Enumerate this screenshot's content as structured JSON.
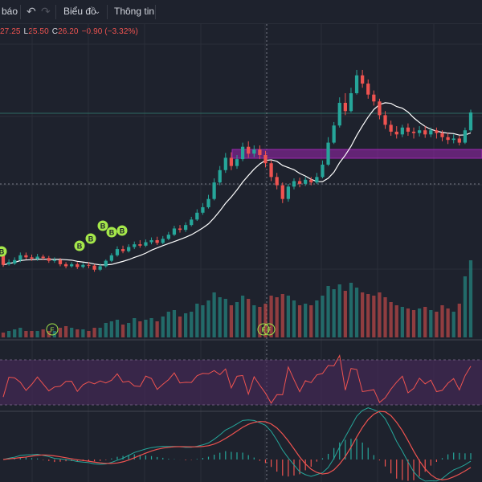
{
  "toolbar": {
    "alerts_label": "báo",
    "undo_icon": "undo-icon",
    "redo_icon": "redo-icon",
    "chart_type_label": "Biểu đồ",
    "chart_type_icon": "chevron-down-icon",
    "info_label": "Thông tin"
  },
  "legend": {
    "high_label": "",
    "high": "27.25",
    "low_label": "L",
    "low": "25.50",
    "close_label": "C",
    "close": "26.20",
    "change": "−0.90 (−3.32%)"
  },
  "colors": {
    "background": "#1e222d",
    "up": "#26a69a",
    "down": "#ef5350",
    "ma": "#ffffff",
    "highlight_zone": "#9c27b0",
    "signal_marker": "#a5e84a",
    "rsi_band": "#4a2a5c",
    "macd": "#26a69a",
    "macd_signal": "#ef5350"
  },
  "markers": {
    "buy_label": "B",
    "flag_label": "F"
  },
  "chart_data": {
    "type": "candlestick",
    "candles": [
      [
        2,
        0.2,
        0.6,
        -0.1,
        0.3
      ],
      [
        0.3,
        0.6,
        1.0,
        0.1,
        0.4
      ],
      [
        0.4,
        0.9,
        1.3,
        0.2,
        0.5
      ],
      [
        0.9,
        1.6,
        2.0,
        0.6,
        0.6
      ],
      [
        1.6,
        1.3,
        2.0,
        1.0,
        0.4
      ],
      [
        1.3,
        1.1,
        1.7,
        0.8,
        0.4
      ],
      [
        1.1,
        1.4,
        1.8,
        0.8,
        0.4
      ],
      [
        1.4,
        1.2,
        1.7,
        0.9,
        0.5
      ],
      [
        1.2,
        0.8,
        1.5,
        0.5,
        0.4
      ],
      [
        0.8,
        0.9,
        1.3,
        0.5,
        0.4
      ],
      [
        0.9,
        0.3,
        1.2,
        0.0,
        0.6
      ],
      [
        0.3,
        0.0,
        0.6,
        -0.3,
        0.7
      ],
      [
        0.0,
        0.3,
        0.6,
        -0.2,
        0.6
      ],
      [
        0.3,
        -0.1,
        0.6,
        -0.4,
        0.5
      ],
      [
        -0.1,
        0.2,
        0.5,
        -0.3,
        0.5
      ],
      [
        0.2,
        0.1,
        0.6,
        -0.3,
        0.4
      ],
      [
        0.1,
        -0.5,
        0.3,
        -0.8,
        0.6
      ],
      [
        -0.5,
        0.0,
        0.4,
        -0.7,
        0.6
      ],
      [
        0.0,
        0.8,
        1.0,
        -0.2,
        0.9
      ],
      [
        0.8,
        1.6,
        1.9,
        0.6,
        1.0
      ],
      [
        1.6,
        2.5,
        2.9,
        1.4,
        1.1
      ],
      [
        2.5,
        2.2,
        3.0,
        1.9,
        0.8
      ],
      [
        2.2,
        2.8,
        3.2,
        2.0,
        0.9
      ],
      [
        2.8,
        3.2,
        3.6,
        2.5,
        1.2
      ],
      [
        3.2,
        3.0,
        3.8,
        2.7,
        1.0
      ],
      [
        3.0,
        3.5,
        3.9,
        2.8,
        1.1
      ],
      [
        3.5,
        3.8,
        4.2,
        3.2,
        1.2
      ],
      [
        3.8,
        3.4,
        4.3,
        3.1,
        1.0
      ],
      [
        3.4,
        4.0,
        4.4,
        3.2,
        1.3
      ],
      [
        4.0,
        4.6,
        5.0,
        3.8,
        1.6
      ],
      [
        4.6,
        5.5,
        5.9,
        4.4,
        1.7
      ],
      [
        5.5,
        5.3,
        6.0,
        4.9,
        1.3
      ],
      [
        5.3,
        6.0,
        6.4,
        5.0,
        1.5
      ],
      [
        6.0,
        6.8,
        7.2,
        5.8,
        1.6
      ],
      [
        6.8,
        7.8,
        8.3,
        6.6,
        2.1
      ],
      [
        7.8,
        8.6,
        9.2,
        7.5,
        2.0
      ],
      [
        8.6,
        9.8,
        10.4,
        8.4,
        2.3
      ],
      [
        9.8,
        12.2,
        12.8,
        9.6,
        2.8
      ],
      [
        12.2,
        14.0,
        14.6,
        11.8,
        2.5
      ],
      [
        14.0,
        15.8,
        16.5,
        13.6,
        2.4
      ],
      [
        15.8,
        14.6,
        16.6,
        14.0,
        2.0
      ],
      [
        14.6,
        15.6,
        16.2,
        14.2,
        2.2
      ],
      [
        15.6,
        17.4,
        18.0,
        15.3,
        2.6
      ],
      [
        17.4,
        16.4,
        18.2,
        15.8,
        2.4
      ],
      [
        16.4,
        17.0,
        17.6,
        15.9,
        2.0
      ],
      [
        17.0,
        16.2,
        17.6,
        15.6,
        1.9
      ],
      [
        16.2,
        15.0,
        16.8,
        14.4,
        2.1
      ],
      [
        15.0,
        13.0,
        15.4,
        12.4,
        2.6
      ],
      [
        13.0,
        11.8,
        13.6,
        11.2,
        2.5
      ],
      [
        11.8,
        9.8,
        12.2,
        9.2,
        2.7
      ],
      [
        9.8,
        11.6,
        12.0,
        9.4,
        2.6
      ],
      [
        11.6,
        12.4,
        12.8,
        11.2,
        2.3
      ],
      [
        12.4,
        12.0,
        12.9,
        11.5,
        2.0
      ],
      [
        12.0,
        12.6,
        13.0,
        11.7,
        2.1
      ],
      [
        12.6,
        12.2,
        13.0,
        11.8,
        2.0
      ],
      [
        12.2,
        13.0,
        13.6,
        12.0,
        2.3
      ],
      [
        13.0,
        14.8,
        15.4,
        12.8,
        2.6
      ],
      [
        14.8,
        18.0,
        18.8,
        14.6,
        3.2
      ],
      [
        18.0,
        20.5,
        21.0,
        17.8,
        3.0
      ],
      [
        20.5,
        23.8,
        24.6,
        20.2,
        3.3
      ],
      [
        23.8,
        22.6,
        25.2,
        22.0,
        2.9
      ],
      [
        22.6,
        25.2,
        26.0,
        22.4,
        3.4
      ],
      [
        25.2,
        27.8,
        28.6,
        25.0,
        3.1
      ],
      [
        27.8,
        26.6,
        28.6,
        26.0,
        2.8
      ],
      [
        26.6,
        25.0,
        27.2,
        24.4,
        2.7
      ],
      [
        25.0,
        24.0,
        25.6,
        23.4,
        2.6
      ],
      [
        24.0,
        22.0,
        24.4,
        21.4,
        2.8
      ],
      [
        22.0,
        20.6,
        22.6,
        20.0,
        2.5
      ],
      [
        20.6,
        19.6,
        21.2,
        19.0,
        2.2
      ],
      [
        19.6,
        19.2,
        20.4,
        18.6,
        2.0
      ],
      [
        19.2,
        20.2,
        20.6,
        18.8,
        1.9
      ],
      [
        20.2,
        19.6,
        20.8,
        19.0,
        1.8
      ],
      [
        19.6,
        19.4,
        20.2,
        18.6,
        1.7
      ],
      [
        19.4,
        19.8,
        20.4,
        18.9,
        1.8
      ],
      [
        19.8,
        19.2,
        20.4,
        18.7,
        1.9
      ],
      [
        19.2,
        19.8,
        20.2,
        18.8,
        1.7
      ],
      [
        19.8,
        19.4,
        20.2,
        18.6,
        1.6
      ],
      [
        19.4,
        18.8,
        19.8,
        18.2,
        2.0
      ],
      [
        18.8,
        18.4,
        19.4,
        17.8,
        1.8
      ],
      [
        18.4,
        18.6,
        19.2,
        17.9,
        1.6
      ],
      [
        18.6,
        18.0,
        19.0,
        17.6,
        2.1
      ],
      [
        18.0,
        19.8,
        20.2,
        17.8,
        3.8
      ],
      [
        19.8,
        22.4,
        22.8,
        19.6,
        4.8
      ]
    ]
  }
}
